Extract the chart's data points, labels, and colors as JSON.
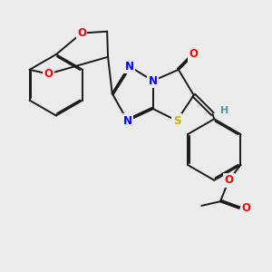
{
  "bg_color": "#ebebeb",
  "bond_color": "#1a1a1a",
  "N_color": "#0000ff",
  "O_color": "#ff0000",
  "S_color": "#c8b400",
  "H_color": "#4a9a9a",
  "lw": 1.4,
  "fs": 8.5,
  "dbo": 0.018,
  "xlim": [
    0.0,
    3.2
  ],
  "ylim": [
    -0.2,
    3.0
  ]
}
